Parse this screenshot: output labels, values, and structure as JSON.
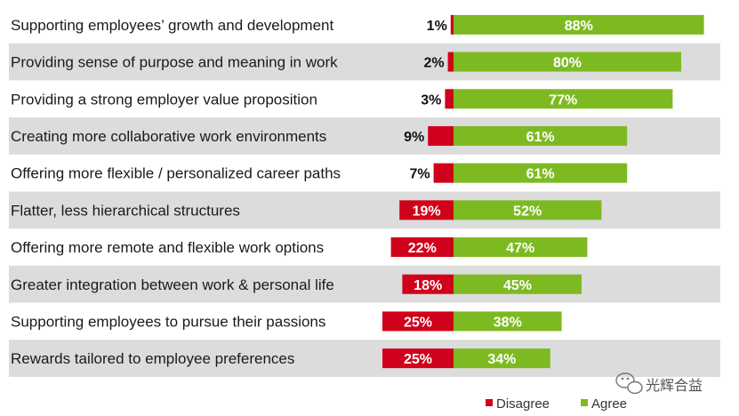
{
  "colors": {
    "disagree": "#d0021b",
    "agree": "#7dba22",
    "stripe": "#dcdcdc",
    "background": "#ffffff"
  },
  "legend": {
    "items": [
      {
        "label": "Disagree",
        "color": "#d0021b"
      },
      {
        "label": "Agree",
        "color": "#7dba22"
      }
    ],
    "position": "bottom-right"
  },
  "watermark": {
    "text": "光辉合益",
    "icon": "wechat-bubble-icon"
  },
  "chart_data": {
    "type": "bar",
    "orientation": "horizontal-diverging",
    "title": "",
    "xlabel": "",
    "ylabel": "",
    "grid": false,
    "categories": [
      "Supporting employees’ growth and development",
      "Providing sense of purpose and meaning in work",
      "Providing a strong employer value proposition",
      "Creating more collaborative work environments",
      "Offering more flexible / personalized career paths",
      "Flatter, less hierarchical structures",
      "Offering more remote and flexible work options",
      "Greater integration between work & personal life",
      "Supporting employees to pursue their passions",
      "Rewards tailored to employee preferences"
    ],
    "series": [
      {
        "name": "Disagree",
        "values": [
          1,
          2,
          3,
          9,
          7,
          19,
          22,
          18,
          25,
          25
        ],
        "labels": [
          "1%",
          "2%",
          "3%",
          "9%",
          "7%",
          "19%",
          "22%",
          "18%",
          "25%",
          "25%"
        ]
      },
      {
        "name": "Agree",
        "values": [
          88,
          80,
          77,
          61,
          61,
          52,
          47,
          45,
          38,
          34
        ],
        "labels": [
          "88%",
          "80%",
          "77%",
          "61%",
          "61%",
          "52%",
          "47%",
          "45%",
          "38%",
          "34%"
        ]
      }
    ]
  }
}
